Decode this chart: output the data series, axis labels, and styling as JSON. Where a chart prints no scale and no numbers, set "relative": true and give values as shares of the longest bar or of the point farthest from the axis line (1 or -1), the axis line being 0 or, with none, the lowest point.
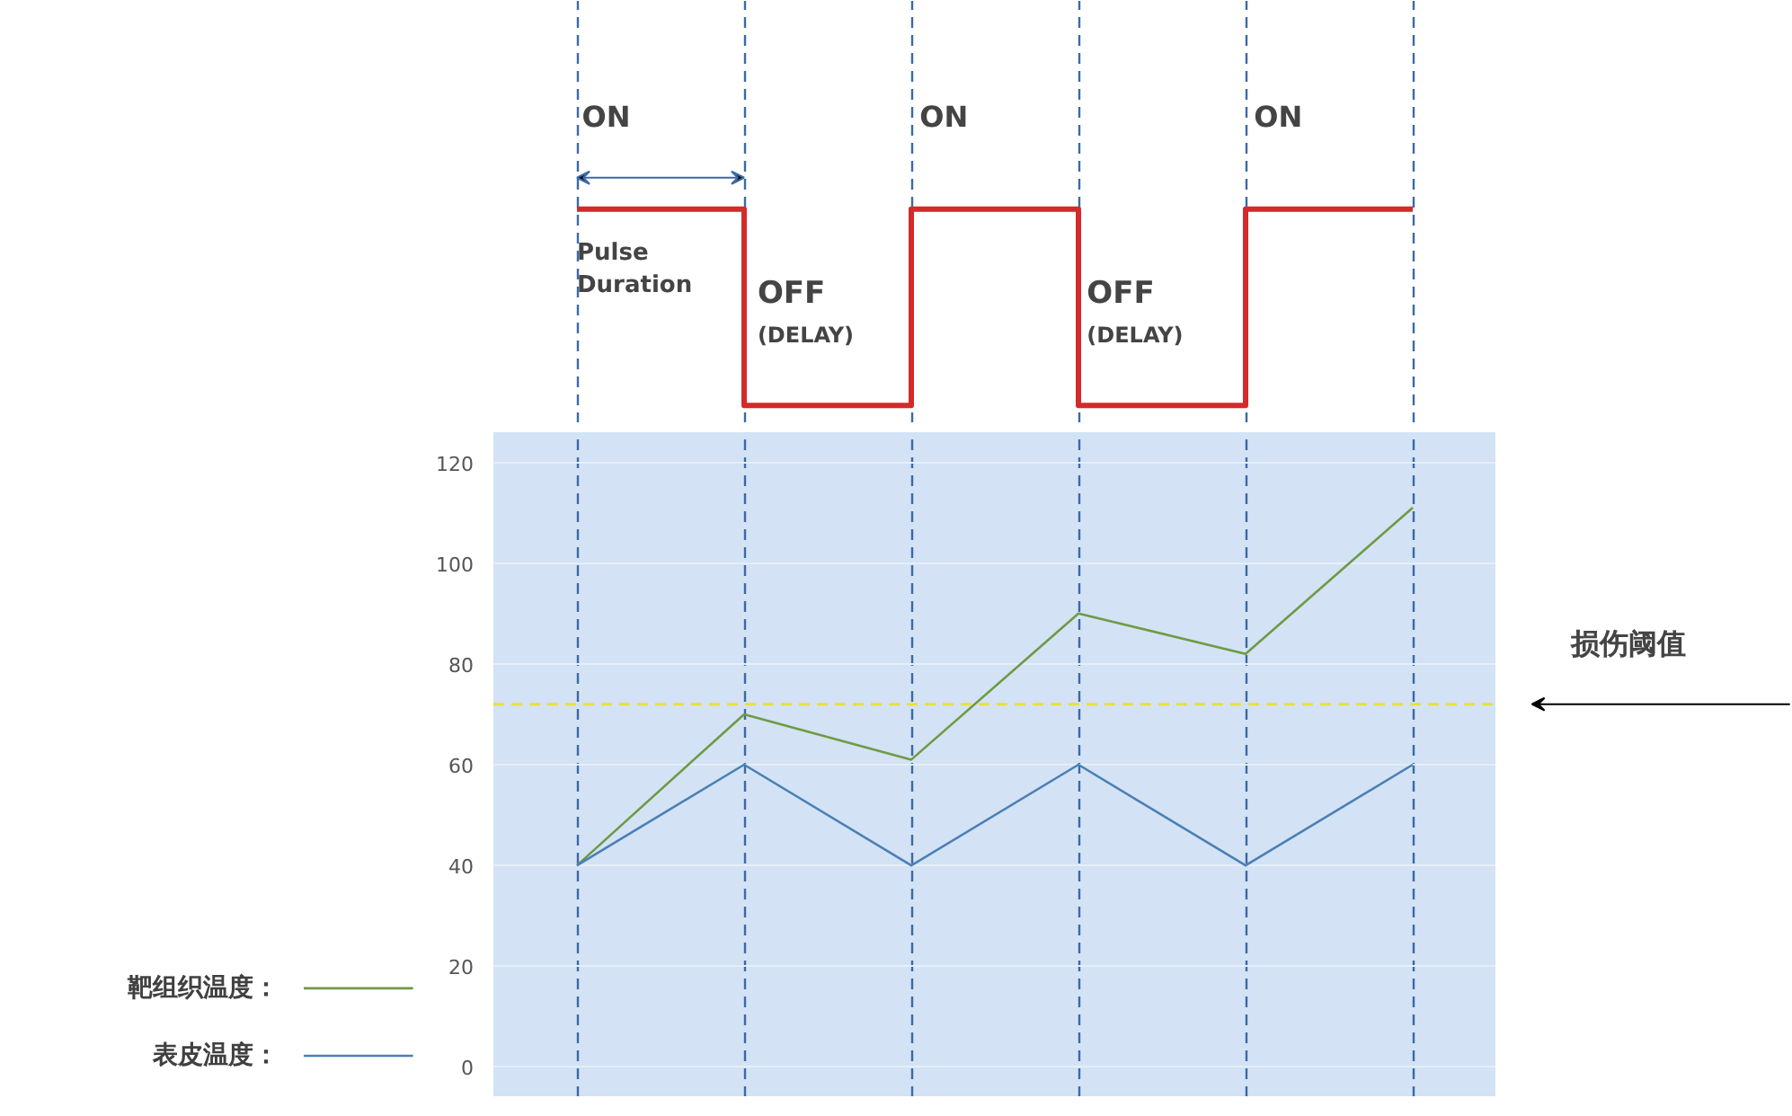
{
  "chart_data": [
    {
      "type": "step",
      "relative": true,
      "categories": [
        null,
        null,
        null,
        null,
        null,
        null
      ],
      "tick_labels": false,
      "grid": "x",
      "series": [
        {
          "color": "#d42a2a",
          "values": [
            1,
            0,
            1,
            0,
            1,
            1
          ]
        }
      ],
      "annotations": [
        "ON",
        "Pulse Duration",
        "OFF",
        "(DELAY)",
        "ON",
        "OFF",
        "(DELAY)",
        "ON"
      ]
    },
    {
      "type": "line",
      "categories": [
        null,
        null,
        null,
        null,
        null,
        null
      ],
      "ylim": [
        -6,
        126
      ],
      "yticks": [
        0,
        20,
        40,
        60,
        80,
        100,
        120
      ],
      "tick_labels": "y",
      "grid": true,
      "legend": "left",
      "marker": "none",
      "line_style": "solid",
      "series": [
        {
          "name": "靶组织温度：",
          "color": "#6f9a45",
          "values": [
            40,
            70,
            61,
            90,
            82,
            111
          ]
        },
        {
          "name": "表皮温度：",
          "color": "#4a7fb5",
          "values": [
            40,
            60,
            40,
            60,
            40,
            60
          ]
        }
      ],
      "ref_lines": [
        {
          "axis": "y",
          "value": 72,
          "label": "损伤阈值",
          "color": "#e8e040",
          "line_style": "dashed"
        }
      ]
    }
  ]
}
